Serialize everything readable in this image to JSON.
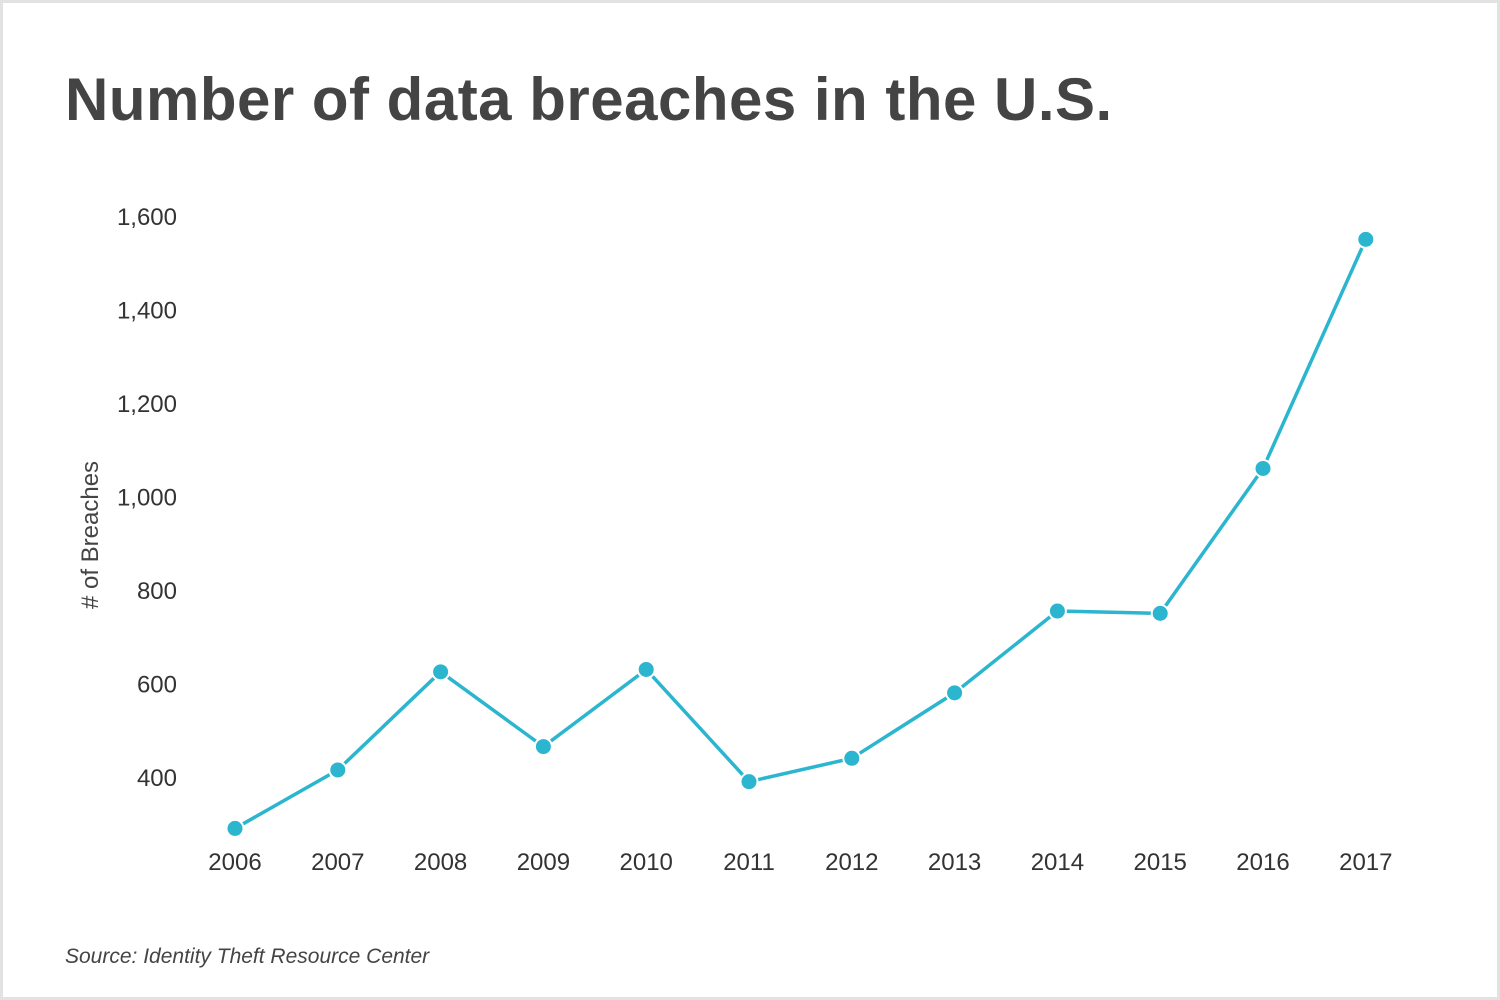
{
  "title": "Number of data breaches in the U.S.",
  "source": "Source: Identity Theft Resource Center",
  "colors": {
    "line": "#2bb5cf",
    "text": "#444444",
    "frame": "#e2e2e2"
  },
  "chart_data": {
    "type": "line",
    "title": "Number of data breaches in the U.S.",
    "xlabel": "",
    "ylabel": "# of Breaches",
    "categories": [
      "2006",
      "2007",
      "2008",
      "2009",
      "2010",
      "2011",
      "2012",
      "2013",
      "2014",
      "2015",
      "2016",
      "2017"
    ],
    "series": [
      {
        "values": [
          290,
          415,
          625,
          465,
          630,
          390,
          440,
          580,
          755,
          750,
          1060,
          1550
        ]
      }
    ],
    "yticks": [
      400,
      600,
      800,
      1000,
      1200,
      1400,
      1600
    ],
    "ytick_labels": [
      "400",
      "600",
      "800",
      "1,000",
      "1,200",
      "1,400",
      "1,600"
    ],
    "ylim": [
      260,
      1600
    ],
    "grid": false,
    "legend": "none"
  }
}
